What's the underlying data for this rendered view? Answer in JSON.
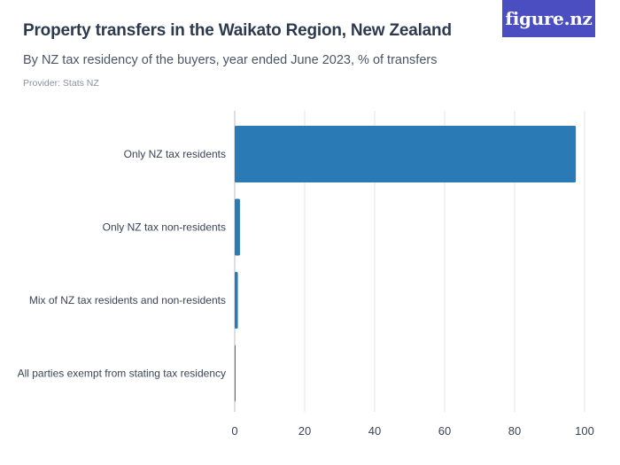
{
  "header": {
    "title": "Property transfers in the Waikato Region, New Zealand",
    "subtitle": "By NZ tax residency of the buyers, year ended June 2023, % of transfers",
    "provider": "Provider: Stats NZ"
  },
  "logo": {
    "text": "figure.nz",
    "color": "#4b4ec0"
  },
  "chart_data": {
    "type": "bar",
    "orientation": "horizontal",
    "categories": [
      "Only NZ tax residents",
      "Only NZ tax non-residents",
      "Mix of NZ tax residents and non-residents",
      "All parties exempt from stating tax residency"
    ],
    "values": [
      97.5,
      1.5,
      0.9,
      0.1
    ],
    "xlim": [
      0,
      100
    ],
    "xticks": [
      0,
      20,
      40,
      60,
      80,
      100
    ],
    "grid": true,
    "bar_color": "#2a7ab5",
    "title": "Property transfers in the Waikato Region, New Zealand",
    "xlabel": "",
    "ylabel": ""
  }
}
